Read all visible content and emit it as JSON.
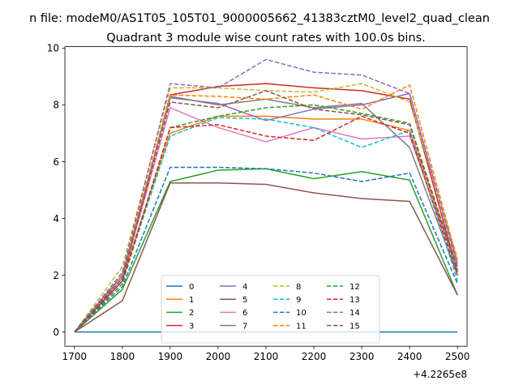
{
  "suptitle": "n file: modeM0/AS1T05_105T01_9000005662_41383cztM0_level2_quad_clean",
  "chart_data": {
    "type": "line",
    "title": "Quadrant 3 module wise count rates with 100.0s bins.",
    "xlabel": "",
    "ylabel": "",
    "x_offset_label": "+4.2265e8",
    "x": [
      1700,
      1800,
      1900,
      2000,
      2100,
      2200,
      2300,
      2400,
      2500
    ],
    "xlim": [
      1680,
      2520
    ],
    "ylim": [
      -0.5,
      10.05
    ],
    "x_ticks": [
      1700,
      1800,
      1900,
      2000,
      2100,
      2200,
      2300,
      2400,
      2500
    ],
    "y_ticks": [
      0,
      2,
      4,
      6,
      8,
      10
    ],
    "grid": false,
    "legend_position": "lower-center",
    "legend_columns": 4,
    "series": [
      {
        "name": "0",
        "color": "#1f77b4",
        "dash": "solid",
        "values": [
          0,
          0,
          0,
          0,
          0,
          0,
          0,
          0,
          0
        ]
      },
      {
        "name": "1",
        "color": "#ff7f0e",
        "dash": "solid",
        "values": [
          0,
          1.9,
          7.0,
          7.6,
          7.6,
          7.5,
          7.5,
          7.1,
          2.3
        ]
      },
      {
        "name": "2",
        "color": "#2ca02c",
        "dash": "solid",
        "values": [
          0,
          1.5,
          5.3,
          5.7,
          5.75,
          5.4,
          5.65,
          5.35,
          1.3
        ]
      },
      {
        "name": "3",
        "color": "#d62728",
        "dash": "solid",
        "values": [
          0,
          1.8,
          8.35,
          8.65,
          8.75,
          8.6,
          8.5,
          8.2,
          2.1
        ]
      },
      {
        "name": "4",
        "color": "#9467bd",
        "dash": "solid",
        "values": [
          0,
          2.0,
          8.25,
          8.05,
          7.45,
          7.85,
          8.0,
          8.4,
          2.4
        ]
      },
      {
        "name": "5",
        "color": "#8c564b",
        "dash": "solid",
        "values": [
          0,
          1.1,
          5.25,
          5.25,
          5.2,
          4.9,
          4.7,
          4.6,
          1.3
        ]
      },
      {
        "name": "6",
        "color": "#e377c2",
        "dash": "solid",
        "values": [
          0,
          1.9,
          7.9,
          7.2,
          6.7,
          7.2,
          6.8,
          6.9,
          2.2
        ]
      },
      {
        "name": "7",
        "color": "#7f7f7f",
        "dash": "solid",
        "values": [
          0,
          2.0,
          8.3,
          8.0,
          8.2,
          7.9,
          8.05,
          6.5,
          2.0
        ]
      },
      {
        "name": "8",
        "color": "#bcbd22",
        "dash": "dashed",
        "values": [
          0,
          2.3,
          8.6,
          8.6,
          8.5,
          8.45,
          8.75,
          8.1,
          2.6
        ]
      },
      {
        "name": "9",
        "color": "#17becf",
        "dash": "dashed",
        "values": [
          0,
          1.8,
          6.9,
          7.55,
          7.5,
          7.2,
          6.5,
          7.1,
          1.8
        ]
      },
      {
        "name": "10",
        "color": "#1f77b4",
        "dash": "dashed",
        "values": [
          0,
          1.6,
          5.8,
          5.8,
          5.75,
          5.6,
          5.3,
          5.6,
          1.7
        ]
      },
      {
        "name": "11",
        "color": "#ff7f0e",
        "dash": "dashed",
        "values": [
          0,
          2.1,
          8.35,
          8.3,
          8.2,
          8.35,
          7.85,
          8.7,
          2.5
        ]
      },
      {
        "name": "12",
        "color": "#2ca02c",
        "dash": "dashed",
        "values": [
          0,
          1.7,
          7.2,
          7.6,
          7.9,
          8.0,
          7.7,
          7.35,
          2.2
        ]
      },
      {
        "name": "13",
        "color": "#d62728",
        "dash": "dashed",
        "values": [
          0,
          1.8,
          7.2,
          7.3,
          6.9,
          6.75,
          7.6,
          7.0,
          2.0
        ]
      },
      {
        "name": "14",
        "color": "#9467bd",
        "dash": "dashed",
        "values": [
          0,
          2.1,
          8.75,
          8.6,
          9.6,
          9.15,
          9.05,
          8.4,
          2.3
        ]
      },
      {
        "name": "15",
        "color": "#8c564b",
        "dash": "dashed",
        "values": [
          0,
          1.9,
          8.1,
          7.9,
          8.5,
          7.85,
          7.65,
          7.3,
          2.1
        ]
      }
    ]
  }
}
